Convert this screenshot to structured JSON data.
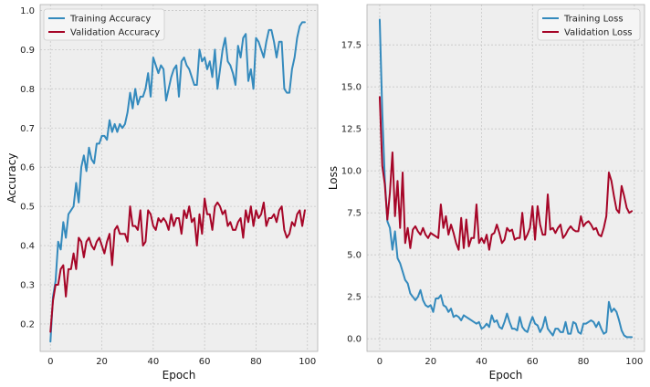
{
  "chart_data": [
    {
      "type": "line",
      "xlabel": "Epoch",
      "ylabel": "Accuracy",
      "xlim": [
        -4,
        104
      ],
      "ylim": [
        0.13,
        1.015
      ],
      "xticks": [
        0,
        20,
        40,
        60,
        80,
        100
      ],
      "yticks": [
        0.2,
        0.3,
        0.4,
        0.5,
        0.6,
        0.7,
        0.8,
        0.9,
        1.0
      ],
      "ytick_labels": [
        "0.2",
        "0.3",
        "0.4",
        "0.5",
        "0.6",
        "0.7",
        "0.8",
        "0.9",
        "1.0"
      ],
      "grid": true,
      "legend": "top-left",
      "series": [
        {
          "name": "Training Accuracy",
          "color": "#348ABD",
          "values": [
            0.155,
            0.27,
            0.31,
            0.41,
            0.39,
            0.46,
            0.42,
            0.48,
            0.49,
            0.5,
            0.56,
            0.51,
            0.6,
            0.63,
            0.59,
            0.65,
            0.62,
            0.61,
            0.66,
            0.66,
            0.68,
            0.68,
            0.67,
            0.72,
            0.69,
            0.71,
            0.69,
            0.71,
            0.7,
            0.71,
            0.74,
            0.79,
            0.75,
            0.8,
            0.76,
            0.78,
            0.78,
            0.8,
            0.84,
            0.78,
            0.88,
            0.86,
            0.84,
            0.86,
            0.85,
            0.77,
            0.8,
            0.83,
            0.85,
            0.86,
            0.78,
            0.87,
            0.88,
            0.86,
            0.85,
            0.83,
            0.81,
            0.81,
            0.9,
            0.87,
            0.88,
            0.85,
            0.87,
            0.83,
            0.9,
            0.8,
            0.85,
            0.9,
            0.93,
            0.87,
            0.86,
            0.84,
            0.81,
            0.91,
            0.88,
            0.93,
            0.94,
            0.82,
            0.85,
            0.8,
            0.93,
            0.92,
            0.9,
            0.88,
            0.92,
            0.95,
            0.95,
            0.92,
            0.88,
            0.92,
            0.92,
            0.8,
            0.79,
            0.79,
            0.85,
            0.88,
            0.93,
            0.96,
            0.97,
            0.97
          ]
        },
        {
          "name": "Validation Accuracy",
          "color": "#A60628",
          "values": [
            0.18,
            0.26,
            0.3,
            0.3,
            0.34,
            0.35,
            0.27,
            0.34,
            0.34,
            0.38,
            0.34,
            0.42,
            0.41,
            0.37,
            0.41,
            0.42,
            0.4,
            0.39,
            0.41,
            0.42,
            0.4,
            0.38,
            0.41,
            0.43,
            0.35,
            0.44,
            0.45,
            0.43,
            0.43,
            0.43,
            0.41,
            0.5,
            0.45,
            0.45,
            0.44,
            0.49,
            0.4,
            0.41,
            0.49,
            0.48,
            0.45,
            0.44,
            0.47,
            0.46,
            0.47,
            0.46,
            0.44,
            0.48,
            0.45,
            0.47,
            0.47,
            0.43,
            0.49,
            0.47,
            0.5,
            0.46,
            0.47,
            0.4,
            0.48,
            0.43,
            0.52,
            0.48,
            0.48,
            0.44,
            0.5,
            0.51,
            0.5,
            0.48,
            0.49,
            0.45,
            0.46,
            0.44,
            0.44,
            0.46,
            0.47,
            0.42,
            0.49,
            0.46,
            0.5,
            0.45,
            0.49,
            0.47,
            0.48,
            0.51,
            0.45,
            0.47,
            0.47,
            0.48,
            0.46,
            0.49,
            0.5,
            0.44,
            0.42,
            0.43,
            0.46,
            0.45,
            0.48,
            0.49,
            0.45,
            0.49
          ]
        }
      ]
    },
    {
      "type": "line",
      "xlabel": "Epoch",
      "ylabel": "Loss",
      "xlim": [
        -5,
        104
      ],
      "ylim": [
        -0.75,
        19.9
      ],
      "xticks": [
        0,
        20,
        40,
        60,
        80,
        100
      ],
      "yticks": [
        0,
        2.5,
        5,
        7.5,
        10,
        12.5,
        15,
        17.5
      ],
      "ytick_labels": [
        "0.0",
        "2.5",
        "5.0",
        "7.5",
        "10.0",
        "12.5",
        "15.0",
        "17.5"
      ],
      "grid": true,
      "legend": "top-right",
      "series": [
        {
          "name": "Training Loss",
          "color": "#348ABD",
          "values": [
            19.0,
            13.5,
            9.5,
            7.0,
            6.6,
            5.3,
            6.4,
            4.8,
            4.5,
            4.0,
            3.5,
            3.3,
            2.7,
            2.5,
            2.3,
            2.5,
            2.9,
            2.3,
            2.0,
            1.9,
            2.0,
            1.6,
            2.4,
            2.4,
            2.6,
            2.0,
            1.9,
            1.6,
            1.8,
            1.3,
            1.4,
            1.3,
            1.1,
            1.4,
            1.3,
            1.2,
            1.1,
            1.0,
            0.9,
            1.0,
            0.6,
            0.7,
            0.9,
            0.7,
            1.4,
            1.0,
            1.1,
            0.7,
            0.6,
            1.0,
            1.5,
            1.0,
            0.6,
            0.6,
            0.5,
            1.3,
            0.7,
            0.5,
            0.4,
            0.9,
            1.3,
            0.9,
            0.8,
            0.4,
            0.7,
            1.3,
            0.6,
            0.4,
            0.2,
            0.6,
            0.6,
            0.4,
            0.4,
            1.0,
            0.3,
            0.3,
            1.0,
            0.9,
            0.4,
            0.3,
            0.9,
            0.9,
            1.0,
            1.1,
            1.0,
            0.7,
            1.0,
            0.6,
            0.3,
            0.4,
            2.2,
            1.6,
            1.8,
            1.6,
            1.1,
            0.5,
            0.2,
            0.1,
            0.1,
            0.1
          ]
        },
        {
          "name": "Validation Loss",
          "color": "#A60628",
          "values": [
            14.4,
            10.3,
            9.2,
            7.1,
            8.7,
            11.1,
            7.3,
            9.4,
            6.6,
            9.9,
            5.7,
            6.6,
            5.4,
            6.5,
            6.7,
            6.4,
            6.2,
            6.6,
            6.2,
            6.0,
            6.3,
            6.2,
            6.1,
            6.0,
            8.0,
            6.6,
            7.3,
            6.2,
            6.8,
            6.3,
            5.7,
            5.3,
            7.2,
            5.4,
            7.1,
            5.5,
            6.0,
            6.0,
            8.0,
            5.7,
            6.0,
            5.7,
            6.2,
            5.3,
            6.2,
            6.3,
            6.8,
            6.3,
            5.7,
            5.9,
            6.6,
            6.4,
            6.5,
            5.9,
            6.0,
            6.0,
            7.5,
            5.9,
            6.2,
            6.6,
            7.9,
            5.9,
            7.9,
            6.8,
            6.2,
            6.2,
            8.6,
            6.5,
            6.6,
            6.3,
            6.6,
            6.8,
            6.0,
            6.2,
            6.5,
            6.7,
            6.5,
            6.4,
            6.4,
            7.3,
            6.7,
            6.9,
            7.0,
            6.8,
            6.5,
            6.6,
            6.2,
            6.1,
            6.6,
            7.3,
            9.9,
            9.4,
            8.5,
            7.7,
            7.5,
            9.1,
            8.5,
            7.8,
            7.5,
            7.6
          ]
        }
      ]
    }
  ]
}
